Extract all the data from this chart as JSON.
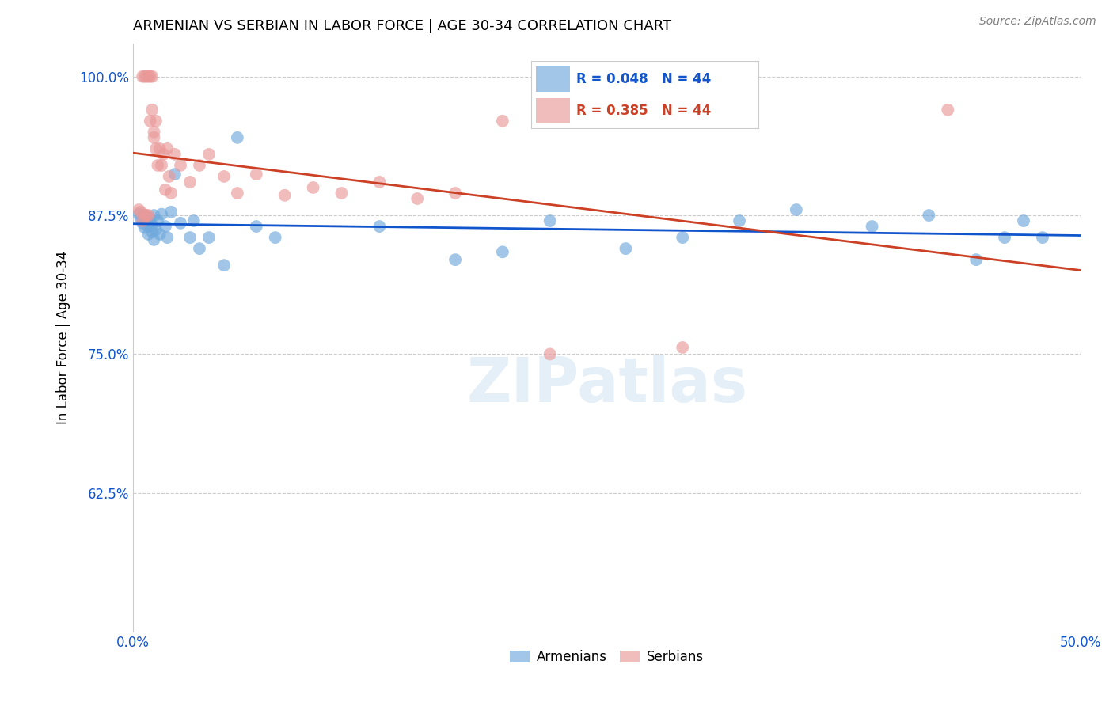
{
  "title": "ARMENIAN VS SERBIAN IN LABOR FORCE | AGE 30-34 CORRELATION CHART",
  "source": "Source: ZipAtlas.com",
  "ylabel": "In Labor Force | Age 30-34",
  "xlim": [
    0.0,
    0.5
  ],
  "ylim": [
    0.5,
    1.03
  ],
  "ytick_positions": [
    0.625,
    0.75,
    0.875,
    1.0
  ],
  "ytick_labels": [
    "62.5%",
    "75.0%",
    "87.5%",
    "100.0%"
  ],
  "armenian_color": "#6fa8dc",
  "serbian_color": "#ea9999",
  "armenian_line_color": "#1155cc",
  "serbian_line_color": "#cc4125",
  "watermark": "ZIPatlas",
  "legend_r_armenian": "R = 0.048",
  "legend_n_armenian": "N = 44",
  "legend_r_serbian": "R = 0.385",
  "legend_n_serbian": "N = 44",
  "armenian_x": [
    0.003,
    0.004,
    0.005,
    0.006,
    0.006,
    0.007,
    0.008,
    0.008,
    0.009,
    0.01,
    0.01,
    0.011,
    0.011,
    0.012,
    0.013,
    0.014,
    0.015,
    0.017,
    0.018,
    0.02,
    0.022,
    0.025,
    0.03,
    0.032,
    0.035,
    0.04,
    0.048,
    0.055,
    0.065,
    0.075,
    0.13,
    0.17,
    0.195,
    0.22,
    0.26,
    0.29,
    0.32,
    0.35,
    0.39,
    0.42,
    0.445,
    0.46,
    0.47,
    0.48
  ],
  "armenian_y": [
    0.876,
    0.872,
    0.868,
    0.864,
    0.875,
    0.87,
    0.865,
    0.858,
    0.872,
    0.866,
    0.86,
    0.875,
    0.853,
    0.862,
    0.87,
    0.858,
    0.876,
    0.865,
    0.855,
    0.878,
    0.912,
    0.868,
    0.855,
    0.87,
    0.845,
    0.855,
    0.83,
    0.945,
    0.865,
    0.855,
    0.865,
    0.835,
    0.842,
    0.87,
    0.845,
    0.855,
    0.87,
    0.88,
    0.865,
    0.875,
    0.835,
    0.855,
    0.87,
    0.855
  ],
  "serbian_x": [
    0.003,
    0.004,
    0.005,
    0.005,
    0.006,
    0.006,
    0.007,
    0.007,
    0.008,
    0.008,
    0.009,
    0.009,
    0.01,
    0.01,
    0.011,
    0.011,
    0.012,
    0.012,
    0.013,
    0.014,
    0.015,
    0.016,
    0.017,
    0.018,
    0.019,
    0.02,
    0.022,
    0.025,
    0.03,
    0.035,
    0.04,
    0.048,
    0.055,
    0.065,
    0.08,
    0.095,
    0.11,
    0.13,
    0.15,
    0.17,
    0.195,
    0.22,
    0.29,
    0.43
  ],
  "serbian_y": [
    0.88,
    0.878,
    0.87,
    1.0,
    0.875,
    1.0,
    0.875,
    1.0,
    0.875,
    1.0,
    1.0,
    0.96,
    0.97,
    1.0,
    0.95,
    0.945,
    0.935,
    0.96,
    0.92,
    0.935,
    0.92,
    0.93,
    0.898,
    0.935,
    0.91,
    0.895,
    0.93,
    0.92,
    0.905,
    0.92,
    0.93,
    0.91,
    0.895,
    0.912,
    0.893,
    0.9,
    0.895,
    0.905,
    0.89,
    0.895,
    0.96,
    0.75,
    0.756,
    0.97
  ]
}
